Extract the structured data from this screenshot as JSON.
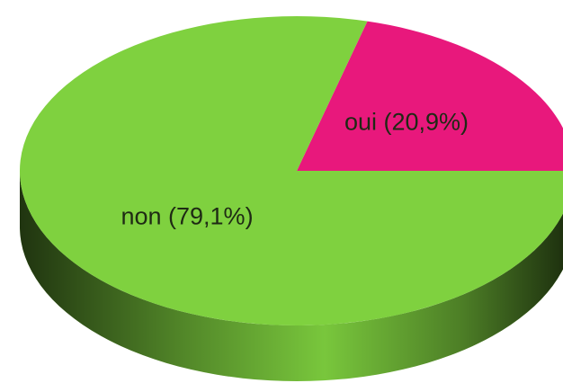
{
  "chart_data": {
    "type": "pie",
    "three_d": true,
    "values": [
      20.9,
      79.1
    ],
    "value_labels": [
      "oui (20,9%)",
      "non (79,1%)"
    ],
    "colors": [
      "#e8187c",
      "#7fd13f"
    ]
  }
}
